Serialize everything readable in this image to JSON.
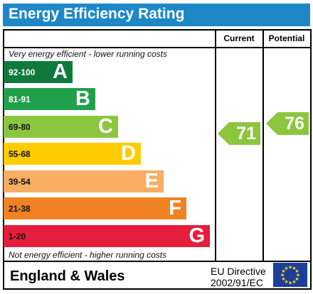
{
  "title": "Energy Efficiency Rating",
  "columns": {
    "current": "Current",
    "potential": "Potential"
  },
  "top_caption": "Very energy efficient - lower running costs",
  "bottom_caption": "Not energy efficient - higher running costs",
  "bands": [
    {
      "range": "92-100",
      "letter": "A",
      "color": "#0f7a3c",
      "range_color": "#ffffff"
    },
    {
      "range": "81-91",
      "letter": "B",
      "color": "#21a04c",
      "range_color": "#ffffff"
    },
    {
      "range": "69-80",
      "letter": "C",
      "color": "#8cc63f",
      "range_color": "#111111"
    },
    {
      "range": "55-68",
      "letter": "D",
      "color": "#ffcc00",
      "range_color": "#111111"
    },
    {
      "range": "39-54",
      "letter": "E",
      "color": "#f7ad62",
      "range_color": "#111111"
    },
    {
      "range": "21-38",
      "letter": "F",
      "color": "#f08224",
      "range_color": "#111111"
    },
    {
      "range": "1-20",
      "letter": "G",
      "color": "#e41e3c",
      "range_color": "#111111"
    }
  ],
  "ratings": {
    "current": {
      "value": "71",
      "color": "#8cc63f"
    },
    "potential": {
      "value": "76",
      "color": "#8cc63f"
    }
  },
  "footer": {
    "region": "England & Wales",
    "directive_line1": "EU Directive",
    "directive_line2": "2002/91/EC"
  }
}
